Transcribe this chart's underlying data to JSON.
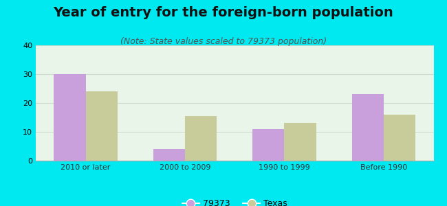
{
  "title": "Year of entry for the foreign-born population",
  "subtitle": "(Note: State values scaled to 79373 population)",
  "categories": [
    "2010 or later",
    "2000 to 2009",
    "1990 to 1999",
    "Before 1990"
  ],
  "series_79373": [
    30,
    4,
    11,
    23
  ],
  "series_texas": [
    24,
    15.5,
    13,
    16
  ],
  "color_79373": "#c9a0dc",
  "color_texas": "#c8cc9a",
  "ylim": [
    0,
    40
  ],
  "yticks": [
    0,
    10,
    20,
    30,
    40
  ],
  "background_outer": "#00e8f0",
  "legend_labels": [
    "79373",
    "Texas"
  ],
  "bar_width": 0.32,
  "title_fontsize": 14,
  "subtitle_fontsize": 9,
  "tick_fontsize": 8
}
